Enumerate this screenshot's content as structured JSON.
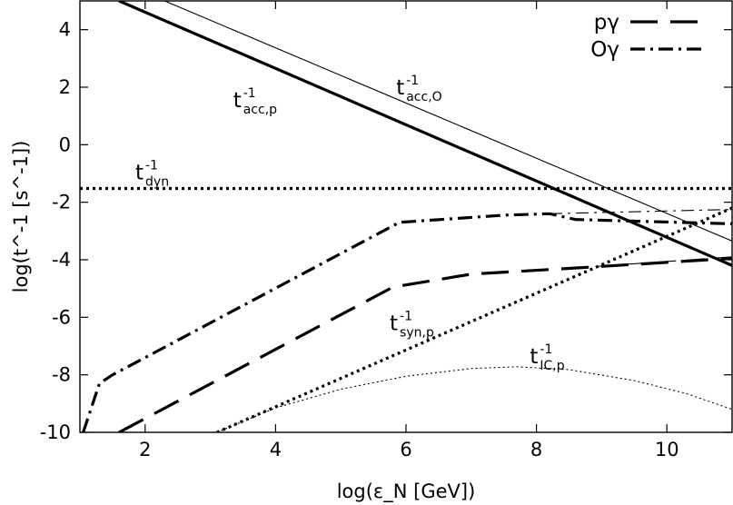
{
  "chart_data": {
    "type": "line",
    "xlabel": "log(ε_N [GeV])",
    "ylabel": "log(t^-1 [s^-1])",
    "xlim": [
      1.0,
      11.0
    ],
    "ylim": [
      -10,
      5
    ],
    "xticks": [
      2,
      4,
      6,
      8,
      10
    ],
    "xtick_labels": [
      "2",
      "4",
      "6",
      "8",
      "10"
    ],
    "yticks": [
      4,
      2,
      0,
      -2,
      -4,
      -6,
      -8,
      -10
    ],
    "ytick_labels": [
      "4",
      "2",
      "0",
      "-2",
      "-4",
      "-6",
      "-8",
      "-10"
    ],
    "grid": false,
    "legend_position": "top-right",
    "legend": [
      {
        "name": "pγ",
        "style": "long-dash"
      },
      {
        "name": "Oγ",
        "style": "dash-dot"
      }
    ],
    "series": [
      {
        "name": "pγ",
        "style": "long-dash",
        "width": "thick",
        "x": [
          1.6,
          5.8,
          7.0,
          8.5,
          11.0
        ],
        "y": [
          -10.0,
          -4.95,
          -4.5,
          -4.3,
          -3.95
        ]
      },
      {
        "name": "pγ (extended)",
        "style": "long-dash",
        "width": "thin",
        "x": [
          8.5,
          11.0
        ],
        "y": [
          -4.3,
          -3.9
        ]
      },
      {
        "name": "Oγ",
        "style": "dash-dot",
        "width": "thick",
        "x": [
          1.05,
          1.3,
          1.5,
          2.0,
          5.9,
          7.5,
          8.2,
          8.6,
          11.0
        ],
        "y": [
          -10.0,
          -8.3,
          -8.0,
          -7.4,
          -2.7,
          -2.45,
          -2.4,
          -2.6,
          -2.75
        ]
      },
      {
        "name": "Oγ (extended)",
        "style": "dash-dot",
        "width": "thin",
        "x": [
          8.2,
          11.0
        ],
        "y": [
          -2.4,
          -2.25
        ]
      },
      {
        "name": "t_acc,p^-1",
        "style": "solid",
        "width": "thick",
        "x": [
          1.6,
          11.0
        ],
        "y": [
          5.0,
          -4.2
        ]
      },
      {
        "name": "t_acc,O^-1",
        "style": "solid",
        "width": "thin",
        "x": [
          2.3,
          11.0
        ],
        "y": [
          5.0,
          -3.35
        ]
      },
      {
        "name": "t_dyn^-1",
        "style": "dotted",
        "width": "thick",
        "x": [
          1.0,
          11.0
        ],
        "y": [
          -1.52,
          -1.52
        ]
      },
      {
        "name": "t_syn,p^-1",
        "style": "dotted",
        "width": "thick",
        "x": [
          3.1,
          11.0
        ],
        "y": [
          -10.0,
          -2.2
        ]
      },
      {
        "name": "t_IC,p^-1",
        "style": "dotted",
        "width": "thin",
        "x": [
          3.1,
          4.0,
          5.0,
          6.0,
          7.0,
          7.7,
          8.5,
          9.5,
          10.3,
          11.0
        ],
        "y": [
          -10.0,
          -9.15,
          -8.5,
          -8.05,
          -7.78,
          -7.72,
          -7.82,
          -8.2,
          -8.65,
          -9.2
        ]
      }
    ],
    "annotations": [
      {
        "main": "t",
        "sup": "-1",
        "sub": "acc,p",
        "x": 3.35,
        "y": 1.3
      },
      {
        "main": "t",
        "sup": "-1",
        "sub": "acc,O",
        "x": 5.85,
        "y": 1.75
      },
      {
        "main": "t",
        "sup": "-1",
        "sub": "dyn",
        "x": 1.85,
        "y": -1.2
      },
      {
        "main": "t",
        "sup": "-1",
        "sub": "syn,p",
        "x": 5.75,
        "y": -6.45
      },
      {
        "main": "t",
        "sup": "-1",
        "sub": "IC,p",
        "x": 7.9,
        "y": -7.6
      }
    ]
  }
}
